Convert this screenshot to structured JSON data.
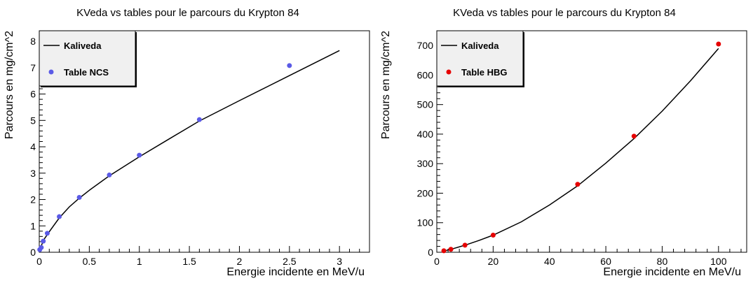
{
  "chart_data": [
    {
      "type": "scatter",
      "title": "KVeda vs tables pour le parcours du Krypton 84",
      "xlabel": "Energie incidente en MeV/u",
      "ylabel": "Parcours en mg/cm^2",
      "xlim": [
        0,
        3.3
      ],
      "ylim": [
        0,
        8.4
      ],
      "xticks": [
        0,
        0.5,
        1,
        1.5,
        2,
        2.5,
        3
      ],
      "xtick_labels": [
        "0",
        "0.5",
        "1",
        "1.5",
        "2",
        "2.5",
        "3"
      ],
      "yticks": [
        0,
        1,
        2,
        3,
        4,
        5,
        6,
        7,
        8
      ],
      "ytick_labels": [
        "0",
        "1",
        "2",
        "3",
        "4",
        "5",
        "6",
        "7",
        "8"
      ],
      "grid": false,
      "legend_position": "top-left",
      "series": [
        {
          "name": "Kaliveda",
          "kind": "line",
          "color": "#000000",
          "x": [
            0,
            0.02,
            0.05,
            0.1,
            0.2,
            0.3,
            0.4,
            0.5,
            0.7,
            1.0,
            1.3,
            1.6,
            2.0,
            2.5,
            3.0
          ],
          "y": [
            0,
            0.25,
            0.5,
            0.78,
            1.3,
            1.72,
            2.05,
            2.35,
            2.9,
            3.62,
            4.3,
            4.98,
            5.75,
            6.7,
            7.65
          ]
        },
        {
          "name": "Table NCS",
          "kind": "points",
          "color": "#5a5ae6",
          "x": [
            0.005,
            0.02,
            0.04,
            0.08,
            0.2,
            0.4,
            0.7,
            1.0,
            1.6,
            2.5
          ],
          "y": [
            0.1,
            0.18,
            0.42,
            0.72,
            1.35,
            2.08,
            2.93,
            3.68,
            5.03,
            7.08
          ]
        }
      ]
    },
    {
      "type": "scatter",
      "title": "KVeda vs tables pour le parcours du Krypton 84",
      "xlabel": "Energie incidente en MeV/u",
      "ylabel": "Parcours en mg/cm^2",
      "xlim": [
        0,
        110
      ],
      "ylim": [
        0,
        750
      ],
      "xticks": [
        0,
        20,
        40,
        60,
        80,
        100
      ],
      "xtick_labels": [
        "0",
        "20",
        "40",
        "60",
        "80",
        "100"
      ],
      "yticks": [
        0,
        100,
        200,
        300,
        400,
        500,
        600,
        700
      ],
      "ytick_labels": [
        "0",
        "100",
        "200",
        "300",
        "400",
        "500",
        "600",
        "700"
      ],
      "grid": false,
      "legend_position": "top-left",
      "series": [
        {
          "name": "Kaliveda",
          "kind": "line",
          "color": "#000000",
          "x": [
            2,
            5,
            10,
            15,
            20,
            30,
            40,
            50,
            60,
            70,
            80,
            90,
            100
          ],
          "y": [
            3,
            10,
            24,
            40,
            58,
            103,
            160,
            225,
            302,
            385,
            478,
            580,
            690
          ]
        },
        {
          "name": "Table HBG",
          "kind": "points",
          "color": "#e60000",
          "x": [
            2.5,
            5,
            10,
            20,
            50,
            70,
            100
          ],
          "y": [
            5,
            10,
            24,
            58,
            230,
            393,
            705
          ]
        }
      ]
    }
  ]
}
